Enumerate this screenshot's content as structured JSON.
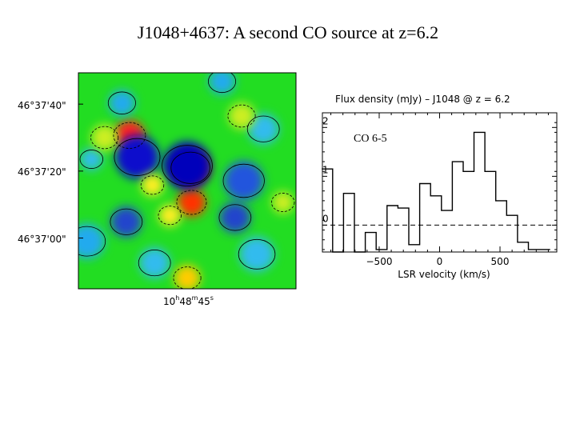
{
  "slide": {
    "title": "J1048+4637: A second CO source at z=6.2"
  },
  "colors": {
    "map_background": "#22dd22",
    "axis": "#000000",
    "zero_line": "#000000"
  },
  "chart_data": [
    {
      "type": "heatmap",
      "title": "",
      "ylabel": "",
      "xlabel": "",
      "y_ticks": [
        "46°37'40\"",
        "46°37'20\"",
        "46°37'00\""
      ],
      "x_tick": {
        "hours": "10",
        "h": "h",
        "minutes": "48",
        "m": "m",
        "seconds": "45",
        "s": "s"
      },
      "blobs": [
        {
          "x": 0.235,
          "y": 0.29,
          "r": 0.07,
          "color": "#ff2222",
          "label": ""
        },
        {
          "x": 0.515,
          "y": 0.44,
          "r": 0.085,
          "color": "#ee1111",
          "label": ""
        },
        {
          "x": 0.52,
          "y": 0.6,
          "r": 0.065,
          "color": "#ff3300",
          "label": ""
        },
        {
          "x": 0.27,
          "y": 0.39,
          "r": 0.1,
          "color": "#1111cc",
          "label": ""
        },
        {
          "x": 0.5,
          "y": 0.43,
          "r": 0.11,
          "color": "#0000bb",
          "label": ""
        },
        {
          "x": 0.76,
          "y": 0.5,
          "r": 0.09,
          "color": "#2255dd",
          "label": ""
        },
        {
          "x": 0.22,
          "y": 0.69,
          "r": 0.07,
          "color": "#2244cc",
          "label": ""
        },
        {
          "x": 0.72,
          "y": 0.67,
          "r": 0.07,
          "color": "#2244cc",
          "label": ""
        },
        {
          "x": 0.2,
          "y": 0.14,
          "r": 0.06,
          "color": "#22aaee",
          "label": ""
        },
        {
          "x": 0.66,
          "y": 0.04,
          "r": 0.06,
          "color": "#22aaee",
          "label": ""
        },
        {
          "x": 0.85,
          "y": 0.26,
          "r": 0.07,
          "color": "#33bbee",
          "label": ""
        },
        {
          "x": 0.04,
          "y": 0.78,
          "r": 0.08,
          "color": "#22aaee",
          "label": ""
        },
        {
          "x": 0.35,
          "y": 0.88,
          "r": 0.07,
          "color": "#33bbee",
          "label": ""
        },
        {
          "x": 0.82,
          "y": 0.84,
          "r": 0.08,
          "color": "#33bbee",
          "label": ""
        },
        {
          "x": 0.06,
          "y": 0.4,
          "r": 0.05,
          "color": "#33bbee",
          "label": ""
        },
        {
          "x": 0.34,
          "y": 0.52,
          "r": 0.05,
          "color": "#ffee22",
          "label": ""
        },
        {
          "x": 0.42,
          "y": 0.66,
          "r": 0.05,
          "color": "#ffee22",
          "label": ""
        },
        {
          "x": 0.5,
          "y": 0.95,
          "r": 0.06,
          "color": "#ffcc00",
          "label": ""
        },
        {
          "x": 0.12,
          "y": 0.3,
          "r": 0.06,
          "color": "#ccee22",
          "label": ""
        },
        {
          "x": 0.75,
          "y": 0.2,
          "r": 0.06,
          "color": "#ccee22",
          "label": ""
        },
        {
          "x": 0.94,
          "y": 0.6,
          "r": 0.05,
          "color": "#ccee22",
          "label": ""
        }
      ]
    },
    {
      "type": "line",
      "step": true,
      "title": "Flux density (mJy)   – J1048 @ z = 6.2",
      "xlabel": "LSR velocity (km/s)",
      "ylabel": "",
      "xlim": [
        -970,
        970
      ],
      "ylim": [
        -0.55,
        2.3
      ],
      "x_ticks": [
        -500,
        0,
        500
      ],
      "y_ticks": [
        0,
        1,
        2
      ],
      "annotation": "CO 6-5",
      "zero_line": "dashed",
      "x": [
        -930,
        -840,
        -750,
        -660,
        -570,
        -480,
        -390,
        -300,
        -210,
        -120,
        -30,
        60,
        150,
        240,
        330,
        420,
        510,
        600,
        690,
        780,
        870
      ],
      "y": [
        1.15,
        -0.55,
        0.65,
        -0.55,
        -0.15,
        -0.5,
        0.4,
        0.35,
        -0.4,
        0.85,
        0.6,
        0.3,
        1.3,
        1.1,
        1.9,
        1.1,
        0.5,
        0.2,
        -0.35,
        -0.5,
        -0.5
      ]
    }
  ]
}
